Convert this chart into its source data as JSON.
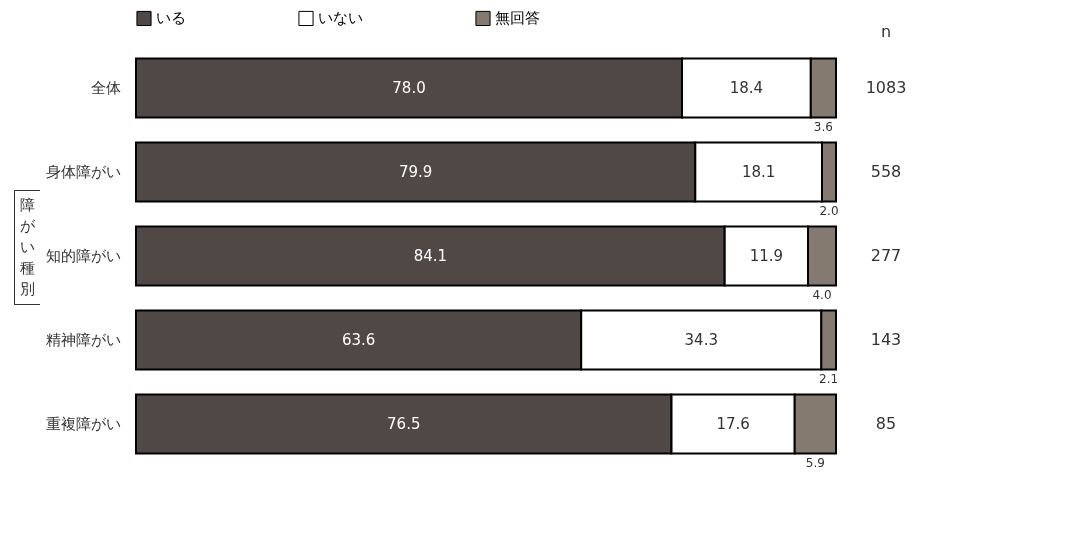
{
  "chart_data": {
    "type": "bar",
    "orientation": "horizontal",
    "stacked": true,
    "categories": [
      "全体",
      "身体障がい",
      "知的障がい",
      "精神障がい",
      "重複障がい"
    ],
    "series": [
      {
        "name": "いる",
        "color": "#4f4845",
        "values": [
          78.0,
          79.9,
          84.1,
          63.6,
          76.5
        ],
        "value_labels": [
          "78.0",
          "79.9",
          "84.1",
          "63.6",
          "76.5"
        ]
      },
      {
        "name": "いない",
        "color": "#ffffff",
        "values": [
          18.4,
          18.1,
          11.9,
          34.3,
          17.6
        ],
        "value_labels": [
          "18.4",
          "18.1",
          "11.9",
          "34.3",
          "17.6"
        ]
      },
      {
        "name": "無回答",
        "color": "#857a70",
        "values": [
          3.6,
          2.0,
          4.0,
          2.1,
          5.9
        ],
        "value_labels": [
          "3.6",
          "2.0",
          "4.0",
          "2.1",
          "5.9"
        ]
      }
    ],
    "legend": "top",
    "tick_labels": "y",
    "annotations": [
      "障がい種別",
      "n",
      "1083",
      "558",
      "277",
      "143",
      "85"
    ]
  }
}
